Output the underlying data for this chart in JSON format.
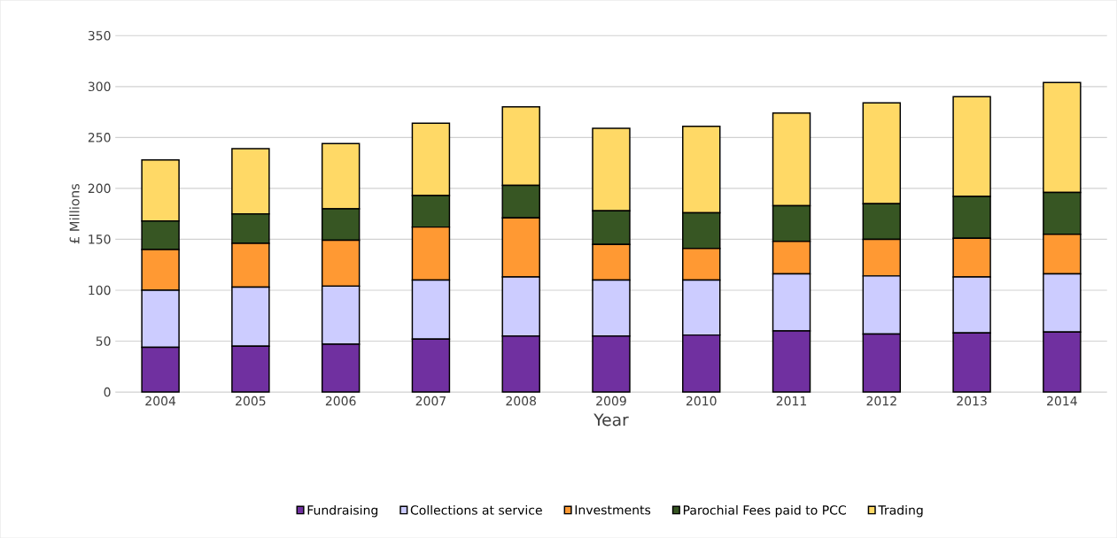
{
  "chart_data": {
    "type": "bar",
    "stacked": true,
    "xlabel": "Year",
    "ylabel": "£ Millions",
    "categories": [
      "2004",
      "2005",
      "2006",
      "2007",
      "2008",
      "2009",
      "2010",
      "2011",
      "2012",
      "2013",
      "2014"
    ],
    "series": [
      {
        "name": "Fundraising",
        "color": "#7030a0",
        "values": [
          44,
          45,
          47,
          52,
          55,
          55,
          56,
          60,
          57,
          58,
          59
        ]
      },
      {
        "name": "Collections at service",
        "color": "#ccccff",
        "values": [
          56,
          58,
          57,
          58,
          58,
          55,
          54,
          56,
          57,
          55,
          57
        ]
      },
      {
        "name": "Investments",
        "color": "#ff9933",
        "values": [
          40,
          43,
          45,
          52,
          58,
          35,
          31,
          32,
          36,
          38,
          39
        ]
      },
      {
        "name": "Parochial Fees paid to PCC",
        "color": "#375623",
        "values": [
          28,
          29,
          31,
          31,
          32,
          33,
          35,
          35,
          35,
          41,
          41
        ]
      },
      {
        "name": "Trading",
        "color": "#ffd966",
        "values": [
          60,
          64,
          64,
          71,
          77,
          81,
          85,
          91,
          99,
          98,
          108
        ]
      }
    ],
    "ylim": [
      0,
      350
    ],
    "yticks": [
      0,
      50,
      100,
      150,
      200,
      250,
      300,
      350
    ],
    "grid": "y",
    "legend": "bottom"
  }
}
